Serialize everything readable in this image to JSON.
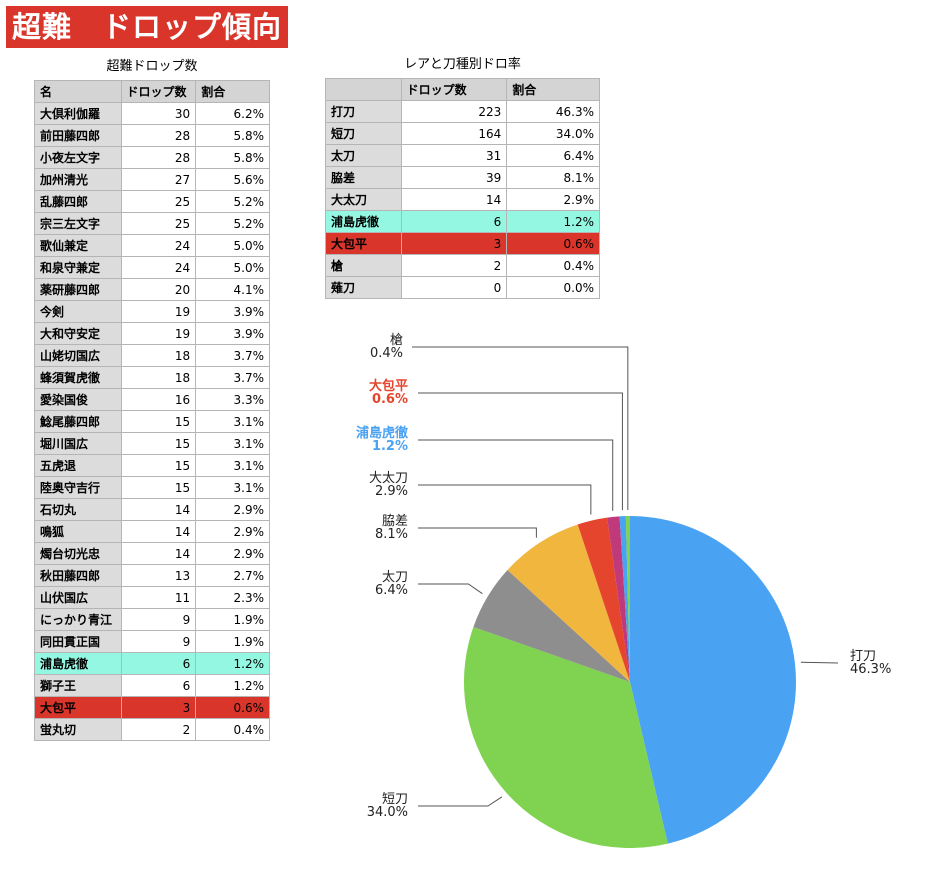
{
  "banner": "超難　ドロップ傾向",
  "left_table": {
    "title": "超難ドロップ数",
    "headers": [
      "名",
      "ドロップ数",
      "割合"
    ],
    "rows": [
      {
        "name": "大倶利伽羅",
        "count": "30",
        "pct": "6.2%"
      },
      {
        "name": "前田藤四郎",
        "count": "28",
        "pct": "5.8%"
      },
      {
        "name": "小夜左文字",
        "count": "28",
        "pct": "5.8%"
      },
      {
        "name": "加州清光",
        "count": "27",
        "pct": "5.6%"
      },
      {
        "name": "乱藤四郎",
        "count": "25",
        "pct": "5.2%"
      },
      {
        "name": "宗三左文字",
        "count": "25",
        "pct": "5.2%"
      },
      {
        "name": "歌仙兼定",
        "count": "24",
        "pct": "5.0%"
      },
      {
        "name": "和泉守兼定",
        "count": "24",
        "pct": "5.0%"
      },
      {
        "name": "薬研藤四郎",
        "count": "20",
        "pct": "4.1%"
      },
      {
        "name": "今剣",
        "count": "19",
        "pct": "3.9%"
      },
      {
        "name": "大和守安定",
        "count": "19",
        "pct": "3.9%"
      },
      {
        "name": "山姥切国広",
        "count": "18",
        "pct": "3.7%"
      },
      {
        "name": "蜂須賀虎徹",
        "count": "18",
        "pct": "3.7%"
      },
      {
        "name": "愛染国俊",
        "count": "16",
        "pct": "3.3%"
      },
      {
        "name": "鯰尾藤四郎",
        "count": "15",
        "pct": "3.1%"
      },
      {
        "name": "堀川国広",
        "count": "15",
        "pct": "3.1%"
      },
      {
        "name": "五虎退",
        "count": "15",
        "pct": "3.1%"
      },
      {
        "name": "陸奥守吉行",
        "count": "15",
        "pct": "3.1%"
      },
      {
        "name": "石切丸",
        "count": "14",
        "pct": "2.9%"
      },
      {
        "name": "鳴狐",
        "count": "14",
        "pct": "2.9%"
      },
      {
        "name": "燭台切光忠",
        "count": "14",
        "pct": "2.9%"
      },
      {
        "name": "秋田藤四郎",
        "count": "13",
        "pct": "2.7%"
      },
      {
        "name": "山伏国広",
        "count": "11",
        "pct": "2.3%"
      },
      {
        "name": "にっかり青江",
        "count": "9",
        "pct": "1.9%"
      },
      {
        "name": "同田貫正国",
        "count": "9",
        "pct": "1.9%"
      },
      {
        "name": "浦島虎徹",
        "count": "6",
        "pct": "1.2%",
        "highlight": "cyan"
      },
      {
        "name": "獅子王",
        "count": "6",
        "pct": "1.2%"
      },
      {
        "name": "大包平",
        "count": "3",
        "pct": "0.6%",
        "highlight": "red"
      },
      {
        "name": "蛍丸切",
        "count": "2",
        "pct": "0.4%"
      }
    ]
  },
  "right_table": {
    "title": "レアと刀種別ドロ率",
    "headers": [
      "",
      "ドロップ数",
      "割合"
    ],
    "rows": [
      {
        "name": "打刀",
        "count": "223",
        "pct": "46.3%"
      },
      {
        "name": "短刀",
        "count": "164",
        "pct": "34.0%"
      },
      {
        "name": "太刀",
        "count": "31",
        "pct": "6.4%"
      },
      {
        "name": "脇差",
        "count": "39",
        "pct": "8.1%"
      },
      {
        "name": "大太刀",
        "count": "14",
        "pct": "2.9%"
      },
      {
        "name": "浦島虎徹",
        "count": "6",
        "pct": "1.2%",
        "highlight": "cyan"
      },
      {
        "name": "大包平",
        "count": "3",
        "pct": "0.6%",
        "highlight": "red"
      },
      {
        "name": "槍",
        "count": "2",
        "pct": "0.4%"
      },
      {
        "name": "薙刀",
        "count": "0",
        "pct": "0.0%"
      }
    ]
  },
  "chart_data": {
    "type": "pie",
    "title": "",
    "start": "12 o'clock, clockwise",
    "slices": [
      {
        "label": "打刀",
        "value": 46.3,
        "pct_label": "46.3%",
        "color": "#4aa2f3"
      },
      {
        "label": "短刀",
        "value": 34.0,
        "pct_label": "34.0%",
        "color": "#7fd350"
      },
      {
        "label": "太刀",
        "value": 6.4,
        "pct_label": "6.4%",
        "color": "#8e8e8e"
      },
      {
        "label": "脇差",
        "value": 8.1,
        "pct_label": "8.1%",
        "color": "#f0b63e"
      },
      {
        "label": "大太刀",
        "value": 2.9,
        "pct_label": "2.9%",
        "color": "#e5452d"
      },
      {
        "label": "浦島虎徹",
        "value": 1.2,
        "pct_label": "1.2%",
        "color": "#c0397a",
        "text_color": "#4aa2f3"
      },
      {
        "label": "大包平",
        "value": 0.6,
        "pct_label": "0.6%",
        "color": "#4aa2f3",
        "text_color": "#e5452d"
      },
      {
        "label": "槍",
        "value": 0.4,
        "pct_label": "0.4%",
        "color": "#7fd350"
      }
    ]
  }
}
